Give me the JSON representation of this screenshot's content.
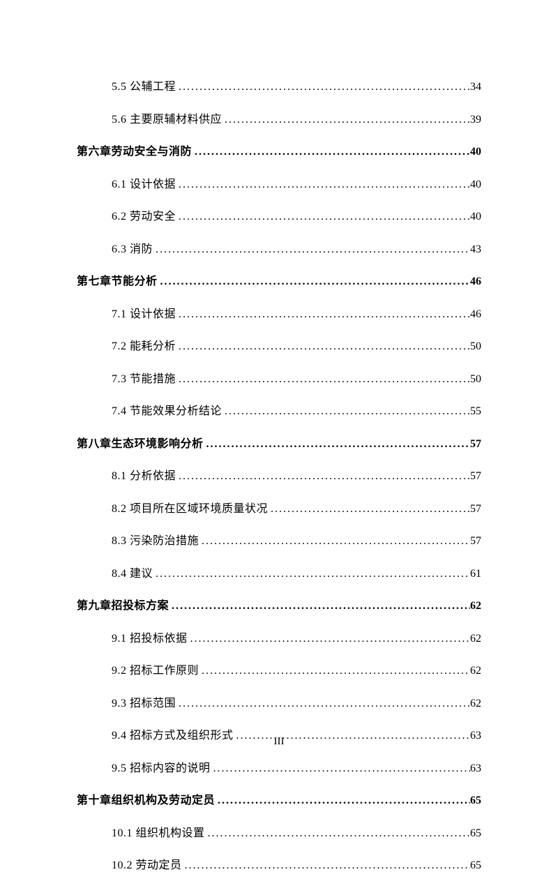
{
  "entries": [
    {
      "level": "sub",
      "label": "5.5 公辅工程",
      "page": "34"
    },
    {
      "level": "sub",
      "label": "5.6 主要原辅材料供应",
      "page": "39"
    },
    {
      "level": "chapter",
      "label": "第六章劳动安全与消防",
      "page": "40"
    },
    {
      "level": "sub",
      "label": "6.1 设计依据",
      "page": "40"
    },
    {
      "level": "sub",
      "label": "6.2 劳动安全",
      "page": "40"
    },
    {
      "level": "sub",
      "label": "6.3 消防",
      "page": "43"
    },
    {
      "level": "chapter",
      "label": "第七章节能分析",
      "page": "46"
    },
    {
      "level": "sub",
      "label": "7.1 设计依据",
      "page": "46"
    },
    {
      "level": "sub",
      "label": "7.2 能耗分析",
      "page": "50"
    },
    {
      "level": "sub",
      "label": "7.3 节能措施",
      "page": "50"
    },
    {
      "level": "sub",
      "label": "7.4 节能效果分析结论",
      "page": "55"
    },
    {
      "level": "chapter",
      "label": "第八章生态环境影响分析",
      "page": "57"
    },
    {
      "level": "sub",
      "label": "8.1 分析依据",
      "page": "57"
    },
    {
      "level": "sub",
      "label": "8.2 项目所在区域环境质量状况",
      "page": "57"
    },
    {
      "level": "sub",
      "label": "8.3 污染防治措施",
      "page": "57"
    },
    {
      "level": "sub",
      "label": "8.4 建议",
      "page": "61"
    },
    {
      "level": "chapter",
      "label": "第九章招投标方案",
      "page": "62"
    },
    {
      "level": "sub",
      "label": "9.1 招投标依据",
      "page": "62"
    },
    {
      "level": "sub",
      "label": "9.2 招标工作原则",
      "page": "62"
    },
    {
      "level": "sub",
      "label": "9.3 招标范围",
      "page": "62"
    },
    {
      "level": "sub",
      "label": "9.4 招标方式及组织形式",
      "page": "63"
    },
    {
      "level": "sub",
      "label": "9.5 招标内容的说明",
      "page": "63"
    },
    {
      "level": "chapter",
      "label": "第十章组织机构及劳动定员",
      "page": "65"
    },
    {
      "level": "sub",
      "label": "10.1 组织机构设置",
      "page": "65"
    },
    {
      "level": "sub",
      "label": "10.2 劳动定员",
      "page": "65"
    }
  ],
  "pageNumber": "III"
}
